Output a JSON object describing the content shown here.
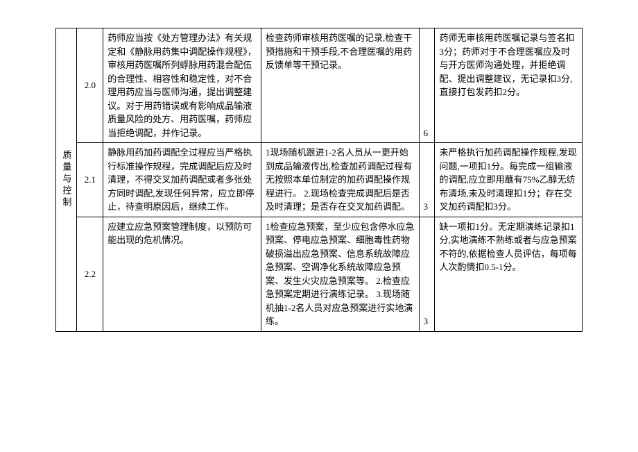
{
  "category_label": "质量与控制",
  "rows": [
    {
      "num": "2.0",
      "requirement": "药师应当按《处方管理办法》有关规定和《静脉用药集中调配操作规程》，审核用药医嘱所列蜉脉用药混合配伍的合理性、相容性和稳定性，对不合理用药应当与医师沟通，提出调整建议。对于用药错误或有影响成品输液质量风险的处方、用药医嘱，药师应当拒绝调配，并作记录。",
      "check": "检查药师审核用药医嘱的记录,检查干预措施和干预手段,不合理医嘱的用药反馈单等干预记录。",
      "score": "6",
      "deduction": "药师无审核用药医嘱记录与签名扣3分；药师对于不合理医嘱应及时与开方医师沟通处理，并拒绝调配、提出调整建议，无记录扣3分,直接打包发药扣2分。"
    },
    {
      "num": "2.1",
      "requirement": "静脉用药加药调配全过程应当严格执行标准操作规程，完成调配后应及时清理，不得交叉加药调配或者多张处方同时调配,发现任何异常，应立即停止，待查明原因后，继续工作。",
      "check": "1现场随机跟进1-2名人员从一更开始到成品输液传出,检查加药调配过程有无按照本单位制定的加药调配操作规程进行。\n2.现场检查完成调配后是否及时清理；是否存在交叉加药调配。",
      "score": "3",
      "deduction": "未严格执行加药调配操作规程,发现问题,一项扣1分。每完成一组输液的调配,应立即用蘸有75%乙醇无纺布清场,未及时清理扣1分；存在交叉加药调配扣3分。"
    },
    {
      "num": "2.2",
      "requirement": "应建立应急预案管理制度，以预防可能出现的危机情况。",
      "check": "1检查应急预案，至少应包含停水应急预案、停电应急预案、细胞毒性药物破损溢出应急预案、信息系统故障应急预案、空调净化系统故障应急预案、发生火灾应急预案等。\n2.检查应急预案定期进行演练记录。\n3.现场随机抽1-2名人员对应急预案进行实地演练。",
      "score": "3",
      "deduction": "缺一项扣1分。无定期演练记录扣1分,实地演练不熟练或者与应急预案不符的,依据检查人员评估，每项每人次酌情扣0.5-1分。"
    }
  ]
}
